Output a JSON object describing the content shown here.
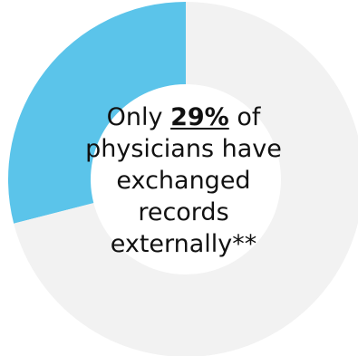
{
  "chart_data": {
    "type": "pie",
    "title": "",
    "slices": [
      {
        "label": "exchanged records externally",
        "value": 29,
        "color": "#5bc4ea"
      },
      {
        "label": "",
        "value": 71,
        "color": "#f2f2f2"
      }
    ],
    "center_text": {
      "line1_pre": "Only ",
      "line1_pct": "29%",
      "line1_post": " of",
      "line2": "physicians have",
      "line3": "exchanged",
      "line4": "records",
      "line5": "externally**"
    }
  }
}
